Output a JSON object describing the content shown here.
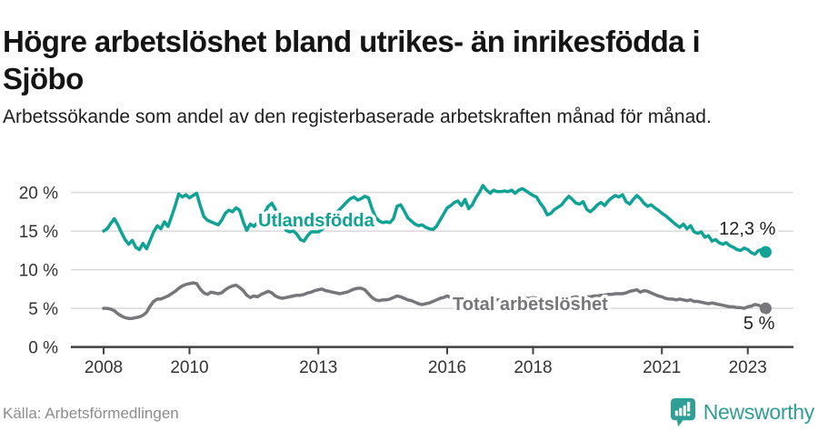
{
  "header": {
    "title_line1": "Högre arbetslöshet bland utrikes- än inrikesfödda i",
    "title_line2": "Sjöbo",
    "subtitle": "Arbetssökande som andel av den registerbaserade arbetskraften månad för månad."
  },
  "footer": {
    "source": "Källa: Arbetsförmedlingen",
    "brand": "Newsworthy"
  },
  "colors": {
    "utlandsfodda": "#10a294",
    "total": "#77767b",
    "grid": "#dadada",
    "axis": "#404040",
    "tick_text": "#333333",
    "value_label": "#222222",
    "brand_teal": "#2f9e94"
  },
  "chart_data": {
    "type": "line",
    "x_start": 2008,
    "x_step": "1 month",
    "x_end_approx": 2023.42,
    "ylim": [
      0,
      22
    ],
    "grid": "horizontal",
    "legend": "inline-labels",
    "y_ticks": [
      {
        "value": 0,
        "label": "0 %"
      },
      {
        "value": 5,
        "label": "5 %"
      },
      {
        "value": 10,
        "label": "10 %"
      },
      {
        "value": 15,
        "label": "15 %"
      },
      {
        "value": 20,
        "label": "20 %"
      }
    ],
    "x_ticks": [
      {
        "value": 2008,
        "label": "2008"
      },
      {
        "value": 2010,
        "label": "2010"
      },
      {
        "value": 2013,
        "label": "2013"
      },
      {
        "value": 2016,
        "label": "2016"
      },
      {
        "value": 2018,
        "label": "2018"
      },
      {
        "value": 2021,
        "label": "2021"
      },
      {
        "value": 2023,
        "label": "2023"
      }
    ],
    "series": [
      {
        "id": "utlandsfodda",
        "label": "Utlandsfödda",
        "end_label": "12,3 %",
        "end_value": 12.3,
        "color": "#10a294",
        "values": [
          15.0,
          15.3,
          16.0,
          16.6,
          15.8,
          14.8,
          13.9,
          13.3,
          13.8,
          12.9,
          12.6,
          13.4,
          12.7,
          13.8,
          14.9,
          15.7,
          15.3,
          16.2,
          15.6,
          16.9,
          18.3,
          19.8,
          19.4,
          19.7,
          19.3,
          19.6,
          19.9,
          18.3,
          16.9,
          16.4,
          16.2,
          16.0,
          15.8,
          16.4,
          17.3,
          17.7,
          17.5,
          18.0,
          17.7,
          16.2,
          15.1,
          15.9,
          15.6,
          16.1,
          16.8,
          17.4,
          18.2,
          18.6,
          17.8,
          16.8,
          15.9,
          15.1,
          14.9,
          15.0,
          14.6,
          13.9,
          13.7,
          14.4,
          14.9,
          14.9,
          14.9,
          15.2,
          15.8,
          16.4,
          17.0,
          17.4,
          17.8,
          18.3,
          18.8,
          19.2,
          19.4,
          19.0,
          19.2,
          19.5,
          19.3,
          17.9,
          16.8,
          16.3,
          16.1,
          16.2,
          16.1,
          16.6,
          18.2,
          18.4,
          17.6,
          16.7,
          16.3,
          15.9,
          15.7,
          15.8,
          15.5,
          15.3,
          15.2,
          15.6,
          16.4,
          17.2,
          18.0,
          18.3,
          18.7,
          18.9,
          18.3,
          19.1,
          17.9,
          18.4,
          19.3,
          20.0,
          20.9,
          20.3,
          19.9,
          20.3,
          20.1,
          20.1,
          20.2,
          20.1,
          20.3,
          19.9,
          20.3,
          20.5,
          20.2,
          19.9,
          19.6,
          19.4,
          18.6,
          18.0,
          17.1,
          17.3,
          17.8,
          18.1,
          18.4,
          19.0,
          19.5,
          19.1,
          18.6,
          18.5,
          18.8,
          17.8,
          17.5,
          17.9,
          18.4,
          18.7,
          18.3,
          18.9,
          19.3,
          19.6,
          19.4,
          19.7,
          18.8,
          18.5,
          19.1,
          19.6,
          19.2,
          18.6,
          18.2,
          18.4,
          18.0,
          17.7,
          17.3,
          17.0,
          16.6,
          16.2,
          15.8,
          15.5,
          15.9,
          15.3,
          15.7,
          14.9,
          14.7,
          14.9,
          14.2,
          14.4,
          13.7,
          13.9,
          13.5,
          13.3,
          13.5,
          13.1,
          12.9,
          12.6,
          12.5,
          12.8,
          12.6,
          12.2,
          12.0,
          12.5,
          12.6,
          12.3
        ]
      },
      {
        "id": "total",
        "label": "Total arbetslöshet",
        "end_label": "5 %",
        "end_value": 5.0,
        "color": "#77767b",
        "values": [
          5.0,
          5.0,
          4.9,
          4.7,
          4.3,
          4.0,
          3.8,
          3.7,
          3.7,
          3.8,
          3.9,
          4.1,
          4.5,
          5.3,
          5.9,
          6.2,
          6.2,
          6.4,
          6.6,
          6.9,
          7.2,
          7.6,
          7.9,
          8.1,
          8.2,
          8.3,
          8.2,
          7.5,
          7.0,
          6.8,
          7.1,
          7.0,
          6.9,
          7.0,
          7.4,
          7.7,
          7.9,
          8.0,
          7.7,
          7.3,
          6.7,
          6.4,
          6.6,
          6.5,
          6.8,
          7.0,
          7.2,
          7.0,
          6.6,
          6.4,
          6.3,
          6.4,
          6.5,
          6.6,
          6.7,
          6.7,
          6.8,
          7.0,
          7.1,
          7.3,
          7.4,
          7.5,
          7.3,
          7.2,
          7.1,
          7.0,
          6.9,
          7.0,
          7.1,
          7.3,
          7.5,
          7.6,
          7.6,
          7.4,
          6.9,
          6.4,
          6.1,
          6.0,
          6.1,
          6.1,
          6.2,
          6.4,
          6.6,
          6.5,
          6.3,
          6.1,
          6.0,
          5.8,
          5.6,
          5.5,
          5.6,
          5.7,
          5.9,
          6.1,
          6.3,
          6.4,
          6.6,
          6.4,
          6.2,
          6.1,
          6.0,
          5.9,
          5.8,
          5.9,
          6.0,
          6.1,
          6.2,
          6.2,
          6.3,
          6.2,
          6.1,
          6.1,
          6.2,
          6.2,
          6.1,
          6.0,
          6.1,
          6.2,
          6.3,
          6.3,
          6.4,
          6.3,
          6.2,
          6.1,
          6.0,
          6.1,
          6.1,
          6.2,
          6.2,
          6.3,
          6.4,
          6.4,
          6.5,
          6.4,
          6.4,
          6.5,
          6.5,
          6.6,
          6.6,
          6.7,
          6.7,
          6.8,
          6.8,
          6.9,
          6.9,
          6.9,
          7.0,
          7.2,
          7.3,
          7.4,
          7.1,
          7.3,
          7.2,
          7.0,
          6.8,
          6.6,
          6.5,
          6.3,
          6.2,
          6.2,
          6.1,
          6.2,
          6.1,
          6.0,
          6.1,
          5.9,
          5.9,
          5.8,
          5.7,
          5.6,
          5.7,
          5.6,
          5.5,
          5.4,
          5.3,
          5.2,
          5.2,
          5.1,
          5.1,
          5.0,
          5.2,
          5.3,
          5.5,
          5.4,
          5.2,
          5.0
        ]
      }
    ]
  }
}
